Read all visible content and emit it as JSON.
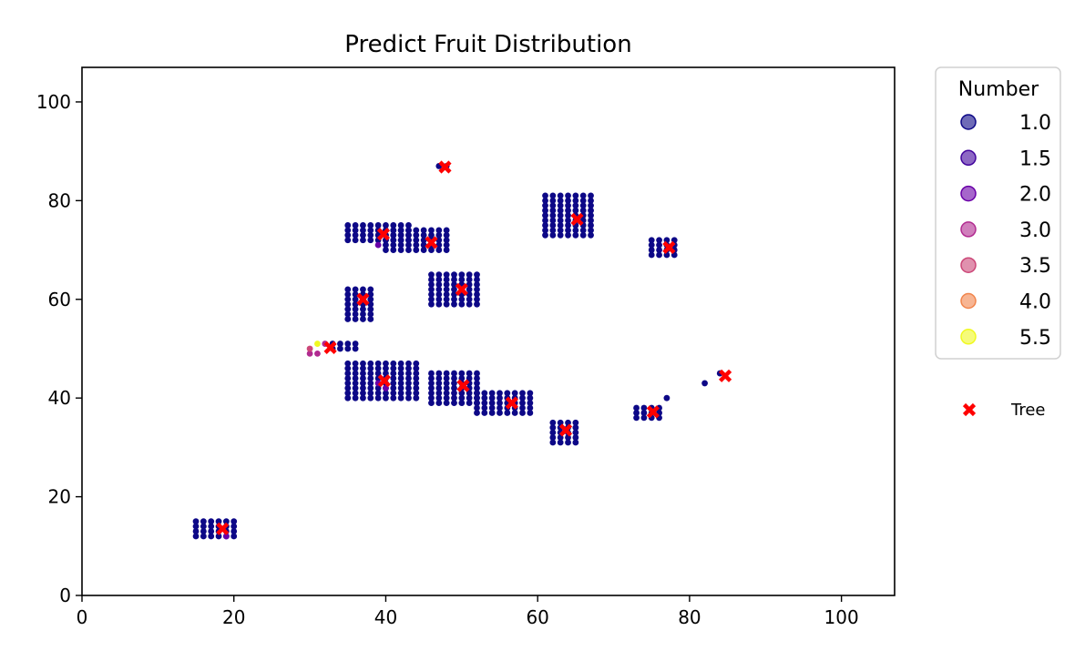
{
  "chart_data": {
    "type": "scatter",
    "title": "Predict Fruit Distribution",
    "xlabel": "",
    "ylabel": "",
    "xlim": [
      0,
      107
    ],
    "ylim": [
      0,
      107
    ],
    "xticks": [
      0,
      20,
      40,
      60,
      80,
      100
    ],
    "yticks": [
      0,
      20,
      40,
      60,
      80,
      100
    ],
    "grid": false,
    "legend": {
      "title": "Number",
      "placement": "outside-top-right",
      "entries": [
        {
          "label": "1.0",
          "value": 1.0,
          "color": "#0d0887"
        },
        {
          "label": "1.5",
          "value": 1.5,
          "color": "#41049d"
        },
        {
          "label": "2.0",
          "value": 2.0,
          "color": "#6a00a8"
        },
        {
          "label": "3.0",
          "value": 3.0,
          "color": "#b12a90"
        },
        {
          "label": "3.5",
          "value": 3.5,
          "color": "#cc4778"
        },
        {
          "label": "4.0",
          "value": 4.0,
          "color": "#f1844b"
        },
        {
          "label": "5.5",
          "value": 5.5,
          "color": "#f0f921"
        }
      ]
    },
    "tree_legend": {
      "label": "Tree",
      "color": "#ff0000",
      "marker": "X"
    },
    "trees": [
      [
        18.5,
        13.5
      ],
      [
        32.7,
        50.2
      ],
      [
        37.0,
        60.0
      ],
      [
        39.7,
        73.2
      ],
      [
        39.8,
        43.5
      ],
      [
        46.0,
        71.5
      ],
      [
        47.8,
        86.8
      ],
      [
        50.0,
        62.0
      ],
      [
        50.2,
        42.5
      ],
      [
        56.6,
        39.0
      ],
      [
        63.7,
        33.5
      ],
      [
        65.2,
        76.2
      ],
      [
        75.2,
        37.2
      ],
      [
        77.3,
        70.5
      ],
      [
        84.7,
        44.5
      ]
    ],
    "fruit_clusters": [
      {
        "x": [
          15,
          20
        ],
        "y": [
          12,
          15
        ],
        "value": 1.0
      },
      {
        "x": [
          35,
          38
        ],
        "y": [
          56,
          62
        ],
        "value": 1.0
      },
      {
        "x": [
          33,
          36
        ],
        "y": [
          50,
          51
        ],
        "value": 1.0
      },
      {
        "x": [
          35,
          44
        ],
        "y": [
          40,
          47
        ],
        "value": 1.0
      },
      {
        "x": [
          35,
          43
        ],
        "y": [
          72,
          75
        ],
        "value": 1.0
      },
      {
        "x": [
          40,
          48
        ],
        "y": [
          70,
          74
        ],
        "value": 1.0
      },
      {
        "x": [
          46,
          52
        ],
        "y": [
          59,
          65
        ],
        "value": 1.0
      },
      {
        "x": [
          46,
          52
        ],
        "y": [
          39,
          45
        ],
        "value": 1.0
      },
      {
        "x": [
          52,
          59
        ],
        "y": [
          37,
          41
        ],
        "value": 1.0
      },
      {
        "x": [
          61,
          67
        ],
        "y": [
          73,
          81
        ],
        "value": 1.0
      },
      {
        "x": [
          62,
          65
        ],
        "y": [
          31,
          35
        ],
        "value": 1.0
      },
      {
        "x": [
          73,
          76
        ],
        "y": [
          36,
          38
        ],
        "value": 1.0
      },
      {
        "x": [
          75,
          78
        ],
        "y": [
          69,
          72
        ],
        "value": 1.0
      }
    ],
    "points": [
      {
        "x": 47,
        "y": 87,
        "value": 1.0
      },
      {
        "x": 48,
        "y": 87,
        "value": 1.0
      },
      {
        "x": 77,
        "y": 40,
        "value": 1.0
      },
      {
        "x": 82,
        "y": 43,
        "value": 1.0
      },
      {
        "x": 84,
        "y": 45,
        "value": 1.0
      },
      {
        "x": 39,
        "y": 71,
        "value": 2.0
      },
      {
        "x": 39,
        "y": 43,
        "value": 2.0
      },
      {
        "x": 40,
        "y": 42,
        "value": 2.0
      },
      {
        "x": 19,
        "y": 12,
        "value": 2.0
      },
      {
        "x": 30,
        "y": 49,
        "value": 3.0
      },
      {
        "x": 31,
        "y": 49,
        "value": 3.0
      },
      {
        "x": 30,
        "y": 50,
        "value": 3.5
      },
      {
        "x": 32,
        "y": 51,
        "value": 3.0
      },
      {
        "x": 31,
        "y": 51,
        "value": 5.5
      }
    ]
  }
}
